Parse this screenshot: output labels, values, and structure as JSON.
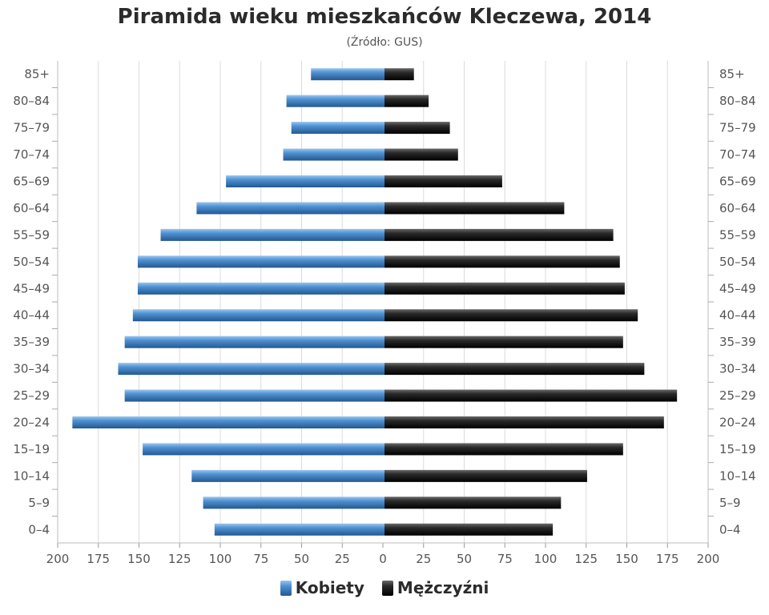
{
  "chart_data": {
    "type": "bar",
    "orientation": "horizontal-population-pyramid",
    "title": "Piramida wieku mieszkańców Kleczewa, 2014",
    "subtitle": "(Źródło: GUS)",
    "categories": [
      "85+",
      "80–84",
      "75–79",
      "70–74",
      "65–69",
      "60–64",
      "55–59",
      "50–54",
      "45–49",
      "40–44",
      "35–39",
      "30–34",
      "25–29",
      "20–24",
      "15–19",
      "10–14",
      "5–9",
      "0–4"
    ],
    "series": [
      {
        "name": "Kobiety",
        "color": "#3a7ec3",
        "side": "left",
        "values": [
          45,
          60,
          57,
          62,
          97,
          115,
          137,
          151,
          151,
          154,
          159,
          163,
          159,
          191,
          148,
          118,
          111,
          104
        ]
      },
      {
        "name": "Mężczyźni",
        "color": "#1a1a1a",
        "side": "right",
        "values": [
          18,
          27,
          40,
          45,
          72,
          110,
          140,
          144,
          147,
          155,
          146,
          159,
          179,
          171,
          146,
          124,
          108,
          103
        ]
      }
    ],
    "x_ticks": [
      "200",
      "175",
      "150",
      "125",
      "100",
      "75",
      "50",
      "25",
      "0",
      "25",
      "50",
      "75",
      "100",
      "125",
      "150",
      "175",
      "200"
    ],
    "xlim": [
      -200,
      200
    ],
    "grid": true,
    "legend_position": "bottom"
  }
}
